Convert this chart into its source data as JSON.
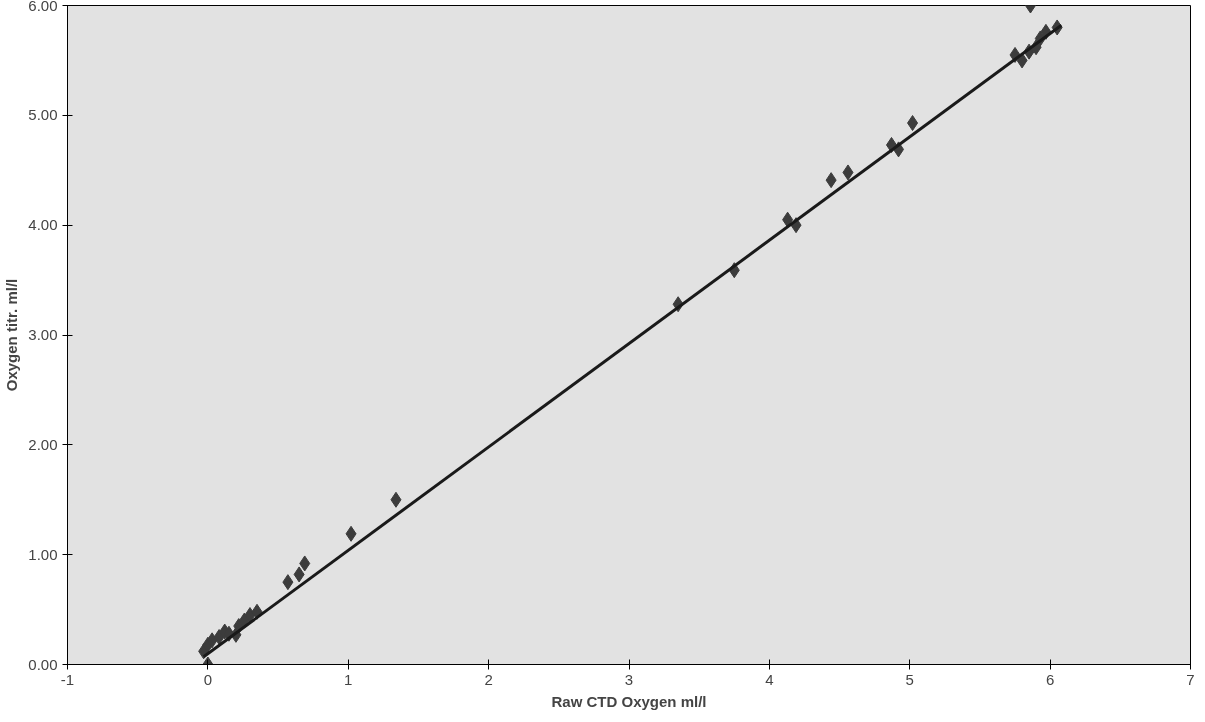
{
  "chart_data": {
    "type": "scatter",
    "xlabel": "Raw CTD Oxygen ml/l",
    "ylabel": "Oxygen titr. ml/l",
    "xlim": [
      -1,
      7
    ],
    "xticks": [
      -1,
      0,
      1,
      2,
      3,
      4,
      5,
      6,
      7
    ],
    "ylim": [
      0,
      6
    ],
    "yticks": [
      {
        "value": 0,
        "label": "0.00"
      },
      {
        "value": 1,
        "label": "1.00"
      },
      {
        "value": 2,
        "label": "2.00"
      },
      {
        "value": 3,
        "label": "3.00"
      },
      {
        "value": 4,
        "label": "4.00"
      },
      {
        "value": 5,
        "label": "5.00"
      },
      {
        "value": 6,
        "label": "6.00"
      }
    ],
    "grid": false,
    "marker": "diamond",
    "series": [
      {
        "color": "#3c3c3c",
        "x": [
          0.0,
          -0.03,
          0.0,
          0.03,
          0.08,
          0.12,
          0.15,
          0.2,
          0.22,
          0.26,
          0.3,
          0.35,
          0.57,
          0.65,
          0.69,
          1.02,
          1.34,
          3.35,
          3.75,
          4.13,
          4.19,
          4.44,
          4.56,
          4.87,
          4.92,
          5.02,
          5.75,
          5.8,
          5.85,
          5.9,
          5.93,
          5.97,
          6.05,
          5.86
        ],
        "values": [
          0.0,
          0.12,
          0.18,
          0.22,
          0.25,
          0.3,
          0.28,
          0.27,
          0.35,
          0.4,
          0.45,
          0.48,
          0.75,
          0.82,
          0.92,
          1.19,
          1.5,
          3.28,
          3.59,
          4.05,
          4.0,
          4.41,
          4.48,
          4.73,
          4.69,
          4.93,
          5.55,
          5.5,
          5.58,
          5.62,
          5.7,
          5.76,
          5.8,
          6.0
        ]
      },
      {
        "type": "line",
        "color": "#1a1a1a",
        "line_style": "solid",
        "marker": "none",
        "x": [
          -0.03,
          6.08
        ],
        "values": [
          0.07,
          5.82
        ]
      }
    ]
  }
}
